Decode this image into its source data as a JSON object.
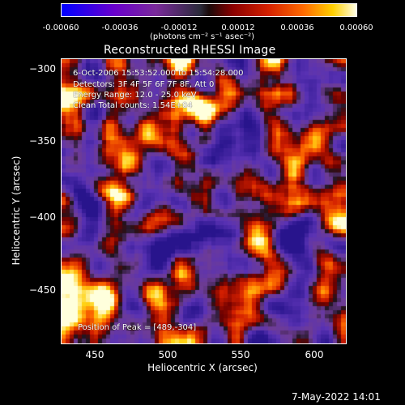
{
  "colorbar": {
    "ticks": [
      "-0.00060",
      "-0.00036",
      "-0.00012",
      "0.00012",
      "0.00036",
      "0.00060"
    ],
    "unit": "(photons cm⁻² s⁻¹ asec⁻²)"
  },
  "title": "Reconstructed RHESSI Image",
  "info": {
    "line1": "6-Oct-2006 15:53:52.000 to 15:54:28.000",
    "line2": "Detectors: 3F 4F 5F 6F 7F 8F, Att 0",
    "line3": "Energy Range: 12.0 - 25.0 keV",
    "line4": "Clean     Total counts: 1.54E+04",
    "peak": "Position of Peak = [489,-304]"
  },
  "axes": {
    "xlabel": "Heliocentric X (arcsec)",
    "ylabel": "Heliocentric Y (arcsec)",
    "xticks": [
      "450",
      "500",
      "550",
      "600"
    ],
    "yticks": [
      "−300",
      "−350",
      "−400",
      "−450"
    ]
  },
  "timestamp": "7-May-2022 14:01"
}
